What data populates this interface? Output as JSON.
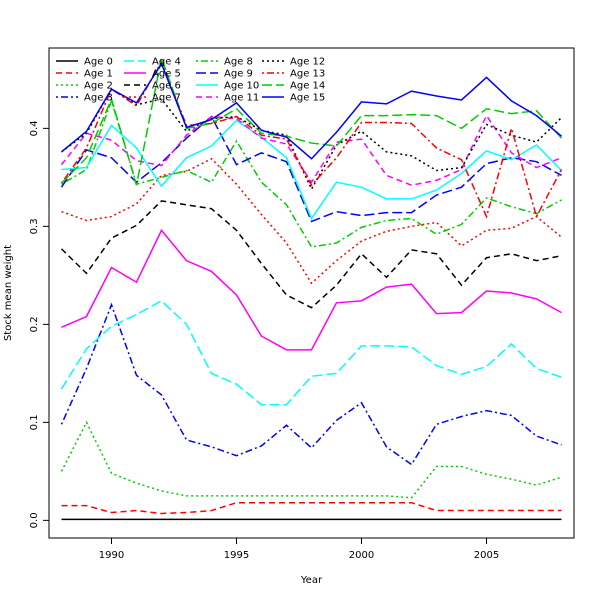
{
  "chart_data": {
    "type": "line",
    "title": "",
    "xlabel": "Year",
    "ylabel": "Stock mean weight",
    "xlim": [
      1987.5,
      2008.5
    ],
    "ylim": [
      -0.018,
      0.482
    ],
    "xticks": [
      1990,
      1995,
      2000,
      2005
    ],
    "yticks": [
      0.0,
      0.1,
      0.2,
      0.3,
      0.4
    ],
    "ytick_labels": [
      "0.0",
      "0.1",
      "0.2",
      "0.3",
      "0.4"
    ],
    "grid": false,
    "legend_position": "top-left",
    "x": [
      1988,
      1989,
      1990,
      1991,
      1992,
      1993,
      1994,
      1995,
      1996,
      1997,
      1998,
      1999,
      2000,
      2001,
      2002,
      2003,
      2004,
      2005,
      2006,
      2007,
      2008
    ],
    "series": [
      {
        "name": "Age 0",
        "color": "#000000",
        "dash": "solid",
        "values": [
          0.001,
          0.001,
          0.001,
          0.001,
          0.001,
          0.001,
          0.001,
          0.001,
          0.001,
          0.001,
          0.001,
          0.001,
          0.001,
          0.001,
          0.001,
          0.001,
          0.001,
          0.001,
          0.001,
          0.001,
          0.001
        ]
      },
      {
        "name": "Age 1",
        "color": "#ff0000",
        "dash": "dashed",
        "values": [
          0.015,
          0.015,
          0.008,
          0.01,
          0.007,
          0.008,
          0.01,
          0.018,
          0.018,
          0.018,
          0.018,
          0.018,
          0.018,
          0.018,
          0.018,
          0.01,
          0.01,
          0.01,
          0.01,
          0.01,
          0.01
        ]
      },
      {
        "name": "Age 2",
        "color": "#00cd00",
        "dash": "dotted",
        "values": [
          0.05,
          0.1,
          0.048,
          0.038,
          0.03,
          0.025,
          0.025,
          0.025,
          0.025,
          0.025,
          0.025,
          0.025,
          0.025,
          0.025,
          0.023,
          0.055,
          0.055,
          0.047,
          0.042,
          0.036,
          0.044
        ]
      },
      {
        "name": "Age 3",
        "color": "#0000ff",
        "dash": "dotdash",
        "values": [
          0.098,
          0.155,
          0.22,
          0.148,
          0.128,
          0.082,
          0.075,
          0.066,
          0.076,
          0.097,
          0.074,
          0.102,
          0.12,
          0.075,
          0.057,
          0.098,
          0.106,
          0.112,
          0.107,
          0.086,
          0.077
        ]
      },
      {
        "name": "Age 4",
        "color": "#00ffff",
        "dash": "longdash",
        "values": [
          0.134,
          0.175,
          0.198,
          0.21,
          0.224,
          0.2,
          0.15,
          0.139,
          0.118,
          0.118,
          0.147,
          0.15,
          0.178,
          0.178,
          0.177,
          0.158,
          0.149,
          0.157,
          0.18,
          0.155,
          0.146
        ]
      },
      {
        "name": "Age 5",
        "color": "#ff00ff",
        "dash": "solid",
        "values": [
          0.197,
          0.208,
          0.258,
          0.243,
          0.296,
          0.265,
          0.254,
          0.23,
          0.188,
          0.174,
          0.174,
          0.222,
          0.224,
          0.238,
          0.241,
          0.211,
          0.212,
          0.234,
          0.232,
          0.226,
          0.212
        ]
      },
      {
        "name": "Age 6",
        "color": "#000000",
        "dash": "dashed",
        "values": [
          0.277,
          0.252,
          0.288,
          0.301,
          0.326,
          0.322,
          0.318,
          0.296,
          0.262,
          0.23,
          0.217,
          0.24,
          0.272,
          0.248,
          0.276,
          0.272,
          0.24,
          0.268,
          0.272,
          0.265,
          0.27
        ]
      },
      {
        "name": "Age 7",
        "color": "#ff0000",
        "dash": "dotted",
        "values": [
          0.315,
          0.306,
          0.31,
          0.323,
          0.352,
          0.356,
          0.369,
          0.343,
          0.312,
          0.283,
          0.242,
          0.265,
          0.285,
          0.295,
          0.3,
          0.304,
          0.28,
          0.296,
          0.298,
          0.31,
          0.289
        ]
      },
      {
        "name": "Age 8",
        "color": "#00cd00",
        "dash": "dotdash",
        "values": [
          0.343,
          0.358,
          0.428,
          0.343,
          0.35,
          0.357,
          0.345,
          0.387,
          0.345,
          0.322,
          0.279,
          0.283,
          0.299,
          0.306,
          0.308,
          0.292,
          0.302,
          0.329,
          0.32,
          0.313,
          0.327
        ]
      },
      {
        "name": "Age 9",
        "color": "#0000ff",
        "dash": "longdash",
        "values": [
          0.34,
          0.378,
          0.37,
          0.345,
          0.365,
          0.39,
          0.412,
          0.363,
          0.375,
          0.366,
          0.305,
          0.315,
          0.311,
          0.314,
          0.314,
          0.332,
          0.34,
          0.364,
          0.37,
          0.366,
          0.352
        ]
      },
      {
        "name": "Age 10",
        "color": "#00ffff",
        "dash": "solid",
        "values": [
          0.358,
          0.36,
          0.403,
          0.38,
          0.341,
          0.37,
          0.382,
          0.408,
          0.391,
          0.37,
          0.308,
          0.345,
          0.34,
          0.328,
          0.328,
          0.337,
          0.354,
          0.377,
          0.368,
          0.383,
          0.357
        ]
      },
      {
        "name": "Age 11",
        "color": "#ff00ff",
        "dash": "dashed",
        "values": [
          0.363,
          0.395,
          0.388,
          0.367,
          0.362,
          0.393,
          0.412,
          0.41,
          0.39,
          0.384,
          0.345,
          0.386,
          0.389,
          0.352,
          0.342,
          0.347,
          0.358,
          0.413,
          0.375,
          0.36,
          0.37
        ]
      },
      {
        "name": "Age 12",
        "color": "#000000",
        "dash": "dotted",
        "values": [
          0.376,
          0.395,
          0.44,
          0.424,
          0.43,
          0.397,
          0.41,
          0.412,
          0.398,
          0.393,
          0.338,
          0.383,
          0.397,
          0.376,
          0.372,
          0.357,
          0.36,
          0.404,
          0.393,
          0.386,
          0.411
        ]
      },
      {
        "name": "Age 13",
        "color": "#ff0000",
        "dash": "dotdash",
        "values": [
          0.344,
          0.38,
          0.44,
          0.423,
          0.468,
          0.403,
          0.405,
          0.412,
          0.393,
          0.389,
          0.342,
          0.37,
          0.406,
          0.406,
          0.405,
          0.38,
          0.368,
          0.31,
          0.4,
          0.31,
          0.358
        ]
      },
      {
        "name": "Age 14",
        "color": "#00cd00",
        "dash": "longdash",
        "values": [
          0.344,
          0.37,
          0.43,
          0.342,
          0.472,
          0.4,
          0.405,
          0.42,
          0.395,
          0.392,
          0.385,
          0.382,
          0.413,
          0.413,
          0.414,
          0.413,
          0.4,
          0.42,
          0.415,
          0.418,
          0.39
        ]
      },
      {
        "name": "Age 15",
        "color": "#0000ff",
        "dash": "solid",
        "values": [
          0.376,
          0.397,
          0.44,
          0.426,
          0.466,
          0.401,
          0.409,
          0.426,
          0.398,
          0.391,
          0.369,
          0.396,
          0.427,
          0.425,
          0.438,
          0.433,
          0.429,
          0.452,
          0.428,
          0.413,
          0.392
        ]
      }
    ]
  }
}
